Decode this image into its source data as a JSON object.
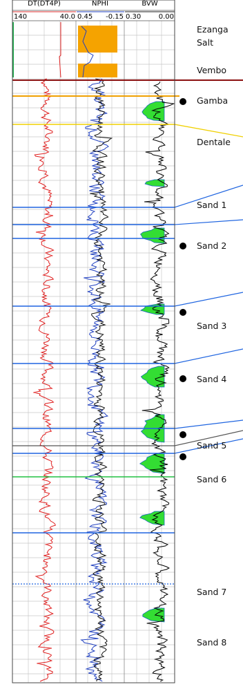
{
  "tracks": [
    {
      "name": "DT(DT4P)",
      "scale_left": "140",
      "scale_right": "40.0"
    },
    {
      "name": "NPHI",
      "scale_left": "0.45",
      "scale_right": "-0.15"
    },
    {
      "name": "BVW",
      "scale_left": "0.30",
      "scale_right": "0.00"
    }
  ],
  "formations": [
    {
      "label": "Ezanga"
    },
    {
      "label": "Salt"
    },
    {
      "label": "Vembo"
    },
    {
      "label": "Gamba"
    },
    {
      "label": "Dentale"
    },
    {
      "label": "Sand 1"
    },
    {
      "label": "Sand 2"
    },
    {
      "label": "Sand 3"
    },
    {
      "label": "Sand 4"
    },
    {
      "label": "Sand 5"
    },
    {
      "label": "Sand 6"
    },
    {
      "label": "Sand 7"
    },
    {
      "label": "Sand 8"
    }
  ]
}
